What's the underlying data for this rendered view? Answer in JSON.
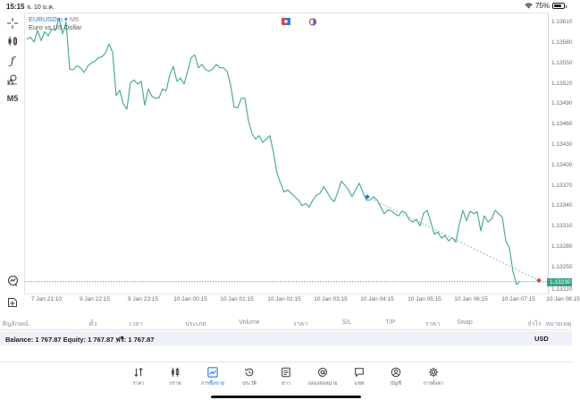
{
  "status_bar": {
    "time": "15:15",
    "date": "จ. 10 ม.ค.",
    "wifi_icon": "wifi-icon",
    "battery_percent": "75%",
    "battery_level": 75
  },
  "left_toolbar": {
    "items": [
      {
        "name": "crosshair-tool",
        "icon": "crosshair-icon"
      },
      {
        "name": "chart-type-tool",
        "icon": "candlestick-icon"
      },
      {
        "name": "indicators-tool",
        "icon": "function-icon"
      },
      {
        "name": "objects-tool",
        "icon": "shapes-icon"
      },
      {
        "name": "timeframe-tool",
        "label": "M5"
      },
      {
        "name": "one-click-trading-tool",
        "icon": "trade-icon"
      },
      {
        "name": "new-order-tool",
        "icon": "add-order-icon"
      }
    ]
  },
  "chart": {
    "symbol": "EURUSDm",
    "symbol_arrow": "▾",
    "timeframe": "M5",
    "description": "Euro vs US Dollar",
    "current_price": "1.13230",
    "colors": {
      "line": "#4caf8d",
      "price_tag": "#3aa389",
      "trend_line": "#7fb4d9",
      "start_marker": "#1f7ae0",
      "end_marker": "#e0443a"
    },
    "top_icons": [
      "flag-icon",
      "clock-icon"
    ]
  },
  "chart_data": {
    "type": "line",
    "title": "EURUSDm, M5",
    "subtitle": "Euro vs US Dollar",
    "xlabel": "",
    "ylabel": "",
    "x_ticks": [
      "7 Jan 21:10",
      "9 Jan 22:15",
      "9 Jan 23:15",
      "10 Jan 00:15",
      "10 Jan 01:15",
      "10 Jan 02:15",
      "10 Jan 03:15",
      "10 Jan 04:15",
      "10 Jan 05:15",
      "10 Jan 06:15",
      "10 Jan 07:15",
      "10 Jan 08:15"
    ],
    "y_ticks": [
      "1.13610",
      "1.13580",
      "1.13550",
      "1.13520",
      "1.13490",
      "1.13460",
      "1.13430",
      "1.13400",
      "1.13370",
      "1.13340",
      "1.13310",
      "1.13280",
      "1.13250",
      "1.13220"
    ],
    "ylim": [
      1.1321,
      1.13625
    ],
    "grid": false,
    "current_price": 1.1323,
    "series": [
      {
        "name": "EURUSDm close",
        "points": [
          [
            0,
            1.13587
          ],
          [
            4,
            1.1359
          ],
          [
            8,
            1.13583
          ],
          [
            12,
            1.136
          ],
          [
            16,
            1.13585
          ],
          [
            20,
            1.13598
          ],
          [
            24,
            1.13592
          ],
          [
            28,
            1.13602
          ],
          [
            32,
            1.136
          ],
          [
            36,
            1.13618
          ],
          [
            40,
            1.13595
          ],
          [
            44,
            1.13612
          ],
          [
            48,
            1.13543
          ],
          [
            52,
            1.13542
          ],
          [
            56,
            1.13548
          ],
          [
            60,
            1.13545
          ],
          [
            64,
            1.13538
          ],
          [
            68,
            1.13547
          ],
          [
            72,
            1.13552
          ],
          [
            76,
            1.13554
          ],
          [
            80,
            1.1356
          ],
          [
            84,
            1.13561
          ],
          [
            88,
            1.13567
          ],
          [
            92,
            1.1358
          ],
          [
            96,
            1.13568
          ],
          [
            100,
            1.13504
          ],
          [
            104,
            1.13512
          ],
          [
            108,
            1.13492
          ],
          [
            112,
            1.13484
          ],
          [
            116,
            1.13523
          ],
          [
            120,
            1.13527
          ],
          [
            124,
            1.13521
          ],
          [
            128,
            1.13525
          ],
          [
            132,
            1.1349
          ],
          [
            136,
            1.13514
          ],
          [
            140,
            1.13503
          ],
          [
            144,
            1.135
          ],
          [
            148,
            1.13501
          ],
          [
            152,
            1.13514
          ],
          [
            156,
            1.13511
          ],
          [
            160,
            1.13535
          ],
          [
            164,
            1.13547
          ],
          [
            168,
            1.13525
          ],
          [
            172,
            1.1353
          ],
          [
            176,
            1.13521
          ],
          [
            180,
            1.1354
          ],
          [
            184,
            1.1356
          ],
          [
            188,
            1.13564
          ],
          [
            192,
            1.13545
          ],
          [
            196,
            1.1355
          ],
          [
            200,
            1.13542
          ],
          [
            204,
            1.1354
          ],
          [
            208,
            1.13543
          ],
          [
            212,
            1.1355
          ],
          [
            216,
            1.13545
          ],
          [
            220,
            1.13545
          ],
          [
            224,
            1.1354
          ],
          [
            228,
            1.1352
          ],
          [
            232,
            1.13487
          ],
          [
            236,
            1.13486
          ],
          [
            240,
            1.135
          ],
          [
            244,
            1.135
          ],
          [
            248,
            1.13467
          ],
          [
            252,
            1.13448
          ],
          [
            256,
            1.1344
          ],
          [
            260,
            1.13445
          ],
          [
            264,
            1.13435
          ],
          [
            268,
            1.1344
          ],
          [
            272,
            1.13445
          ],
          [
            276,
            1.1342
          ],
          [
            280,
            1.1339
          ],
          [
            284,
            1.13375
          ],
          [
            288,
            1.13362
          ],
          [
            292,
            1.13365
          ],
          [
            296,
            1.1336
          ],
          [
            300,
            1.13355
          ],
          [
            304,
            1.1335
          ],
          [
            308,
            1.13342
          ],
          [
            312,
            1.13345
          ],
          [
            316,
            1.1334
          ],
          [
            320,
            1.1335
          ],
          [
            324,
            1.13357
          ],
          [
            328,
            1.1336
          ],
          [
            332,
            1.1337
          ],
          [
            336,
            1.13362
          ],
          [
            340,
            1.13353
          ],
          [
            344,
            1.13348
          ],
          [
            348,
            1.13362
          ],
          [
            352,
            1.13378
          ],
          [
            356,
            1.13372
          ],
          [
            360,
            1.13365
          ],
          [
            364,
            1.13355
          ],
          [
            368,
            1.13366
          ],
          [
            372,
            1.13375
          ],
          [
            376,
            1.13362
          ],
          [
            380,
            1.1335
          ],
          [
            384,
            1.1335
          ],
          [
            388,
            1.13355
          ],
          [
            392,
            1.1335
          ],
          [
            396,
            1.1334
          ],
          [
            400,
            1.1333
          ],
          [
            404,
            1.13336
          ],
          [
            408,
            1.13334
          ],
          [
            412,
            1.1333
          ],
          [
            416,
            1.13327
          ],
          [
            420,
            1.13334
          ],
          [
            424,
            1.13331
          ],
          [
            428,
            1.13321
          ],
          [
            432,
            1.13318
          ],
          [
            436,
            1.13322
          ],
          [
            440,
            1.13312
          ],
          [
            444,
            1.13331
          ],
          [
            448,
            1.13335
          ],
          [
            452,
            1.13318
          ],
          [
            456,
            1.133
          ],
          [
            460,
            1.13303
          ],
          [
            464,
            1.13294
          ],
          [
            468,
            1.13298
          ],
          [
            472,
            1.1329
          ],
          [
            476,
            1.13295
          ],
          [
            480,
            1.13288
          ],
          [
            484,
            1.13315
          ],
          [
            488,
            1.13335
          ],
          [
            492,
            1.1332
          ],
          [
            496,
            1.13334
          ],
          [
            500,
            1.1333
          ],
          [
            504,
            1.13333
          ],
          [
            508,
            1.13305
          ],
          [
            512,
            1.13327
          ],
          [
            516,
            1.13318
          ],
          [
            520,
            1.13322
          ],
          [
            524,
            1.13335
          ],
          [
            528,
            1.1333
          ],
          [
            532,
            1.13325
          ],
          [
            536,
            1.1329
          ],
          [
            540,
            1.1328
          ],
          [
            544,
            1.13245
          ],
          [
            548,
            1.13226
          ],
          [
            552,
            1.13231
          ]
        ]
      }
    ],
    "annotations": [
      {
        "type": "trend_line",
        "from": {
          "x": 383,
          "price": 1.13355
        },
        "to": {
          "x": 575,
          "price": 1.13232
        },
        "style": "dotted",
        "start_marker": "blue",
        "end_marker": "red"
      },
      {
        "type": "horizontal_line",
        "price": 1.1323,
        "style": "dotted",
        "label": "1.13230"
      }
    ]
  },
  "trade_table": {
    "columns": [
      "สัญลักษณ์",
      "ตั๋ว",
      "เวลา",
      "ประเภท",
      "Volume",
      "ราคา",
      "S/L",
      "T/P",
      "ราคา",
      "Swap",
      "กำไร",
      "หมายเหตุ"
    ]
  },
  "account_bar": {
    "summary": "Balance: 1 767.87 Equity: 1 767.87 ฟรี: 1 767.87",
    "balance": "1 767.87",
    "equity": "1 767.87",
    "free_margin": "1 767.87",
    "currency": "USD"
  },
  "bottom_tabs": [
    {
      "label": "ราคา",
      "icon": "quotes-icon",
      "active": false
    },
    {
      "label": "กราฟ",
      "icon": "chart-icon",
      "active": false
    },
    {
      "label": "การซื้อขาย",
      "icon": "trade-icon",
      "active": true
    },
    {
      "label": "ประวัติ",
      "icon": "history-icon",
      "active": false
    },
    {
      "label": "ข่าว",
      "icon": "news-icon",
      "active": false
    },
    {
      "label": "กล่องจดหมาย",
      "icon": "mailbox-icon",
      "active": false
    },
    {
      "label": "แชท",
      "icon": "chat-icon",
      "active": false
    },
    {
      "label": "บัญชี",
      "icon": "account-icon",
      "active": false
    },
    {
      "label": "การตั้งค่า",
      "icon": "settings-icon",
      "active": false
    }
  ]
}
